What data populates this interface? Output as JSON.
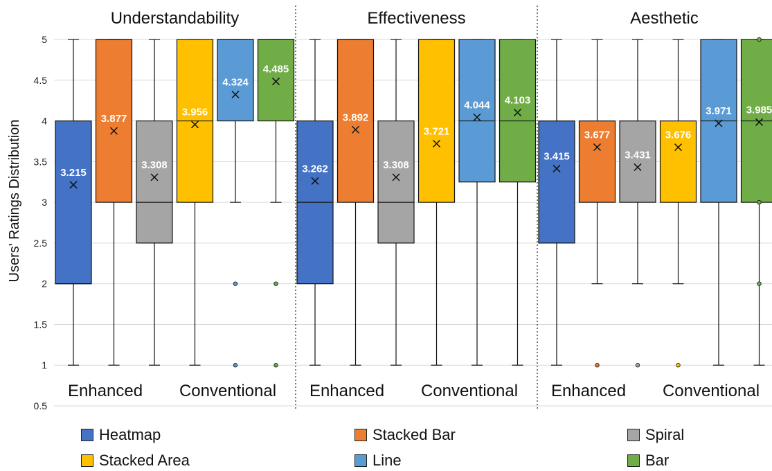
{
  "chart_data": {
    "type": "box",
    "ylabel": "Users' Ratings Distribution",
    "ylim": [
      0.5,
      5
    ],
    "yticks": [
      0.5,
      1,
      1.5,
      2,
      2.5,
      3,
      3.5,
      4,
      4.5,
      5
    ],
    "ytick_labels": [
      "0.5",
      "1",
      "1.5",
      "2",
      "2.5",
      "3",
      "3.5",
      "4",
      "4.5",
      "5"
    ],
    "grid": "horizontal",
    "legend_position": "bottom",
    "series": [
      {
        "name": "Heatmap",
        "color": "#4472C4"
      },
      {
        "name": "Stacked Bar",
        "color": "#ED7D31"
      },
      {
        "name": "Spiral",
        "color": "#A5A5A5"
      },
      {
        "name": "Stacked Area",
        "color": "#FFC000"
      },
      {
        "name": "Line",
        "color": "#5B9BD5"
      },
      {
        "name": "Bar",
        "color": "#70AD47"
      }
    ],
    "group_labels": [
      "Enhanced",
      "Conventional"
    ],
    "panels": [
      {
        "title": "Understandability",
        "boxes": [
          {
            "series": "Heatmap",
            "min": 1,
            "q1": 2,
            "median": 2,
            "q3": 4,
            "max": 5,
            "mean": 3.215,
            "mean_label": "3.215",
            "outliers": []
          },
          {
            "series": "Stacked Bar",
            "min": 1,
            "q1": 3,
            "median": 5,
            "q3": 5,
            "max": 5,
            "mean": 3.877,
            "mean_label": "3.877",
            "outliers": []
          },
          {
            "series": "Spiral",
            "min": 1,
            "q1": 2.5,
            "median": 3,
            "q3": 4,
            "max": 5,
            "mean": 3.308,
            "mean_label": "3.308",
            "outliers": []
          },
          {
            "series": "Stacked Area",
            "min": 1,
            "q1": 3,
            "median": 4,
            "q3": 5,
            "max": 5,
            "mean": 3.956,
            "mean_label": "3.956",
            "outliers": []
          },
          {
            "series": "Line",
            "min": 3,
            "q1": 4,
            "median": 5,
            "q3": 5,
            "max": 5,
            "mean": 4.324,
            "mean_label": "4.324",
            "outliers": [
              2,
              1
            ]
          },
          {
            "series": "Bar",
            "min": 3,
            "q1": 4,
            "median": 5,
            "q3": 5,
            "max": 5,
            "mean": 4.485,
            "mean_label": "4.485",
            "outliers": [
              2,
              1
            ]
          }
        ]
      },
      {
        "title": "Effectiveness",
        "boxes": [
          {
            "series": "Heatmap",
            "min": 1,
            "q1": 2,
            "median": 3,
            "q3": 4,
            "max": 5,
            "mean": 3.262,
            "mean_label": "3.262",
            "outliers": []
          },
          {
            "series": "Stacked Bar",
            "min": 1,
            "q1": 3,
            "median": 5,
            "q3": 5,
            "max": 5,
            "mean": 3.892,
            "mean_label": "3.892",
            "outliers": []
          },
          {
            "series": "Spiral",
            "min": 1,
            "q1": 2.5,
            "median": 3,
            "q3": 4,
            "max": 5,
            "mean": 3.308,
            "mean_label": "3.308",
            "outliers": []
          },
          {
            "series": "Stacked Area",
            "min": 1,
            "q1": 3,
            "median": 5,
            "q3": 5,
            "max": 5,
            "mean": 3.721,
            "mean_label": "3.721",
            "outliers": []
          },
          {
            "series": "Line",
            "min": 1,
            "q1": 3.25,
            "median": 4,
            "q3": 5,
            "max": 5,
            "mean": 4.044,
            "mean_label": "4.044",
            "outliers": []
          },
          {
            "series": "Bar",
            "min": 1,
            "q1": 3.25,
            "median": 4,
            "q3": 5,
            "max": 5,
            "mean": 4.103,
            "mean_label": "4.103",
            "outliers": []
          }
        ]
      },
      {
        "title": "Aesthetic",
        "boxes": [
          {
            "series": "Heatmap",
            "min": 1,
            "q1": 2.5,
            "median": 4,
            "q3": 4,
            "max": 5,
            "mean": 3.415,
            "mean_label": "3.415",
            "outliers": []
          },
          {
            "series": "Stacked Bar",
            "min": 2,
            "q1": 3,
            "median": 4,
            "q3": 4,
            "max": 5,
            "mean": 3.677,
            "mean_label": "3.677",
            "outliers": [
              1
            ]
          },
          {
            "series": "Spiral",
            "min": 2,
            "q1": 3,
            "median": 4,
            "q3": 4,
            "max": 5,
            "mean": 3.431,
            "mean_label": "3.431",
            "outliers": [
              1
            ]
          },
          {
            "series": "Stacked Area",
            "min": 2,
            "q1": 3,
            "median": 4,
            "q3": 4,
            "max": 5,
            "mean": 3.676,
            "mean_label": "3.676",
            "outliers": [
              1
            ]
          },
          {
            "series": "Line",
            "min": 1,
            "q1": 3,
            "median": 4,
            "q3": 5,
            "max": 5,
            "mean": 3.971,
            "mean_label": "3.971",
            "outliers": []
          },
          {
            "series": "Bar",
            "min": 1,
            "q1": 3,
            "median": 4,
            "q3": 5,
            "max": 5,
            "mean": 3.985,
            "mean_label": "3.985",
            "outliers": [
              5,
              3,
              2
            ]
          }
        ]
      }
    ]
  }
}
